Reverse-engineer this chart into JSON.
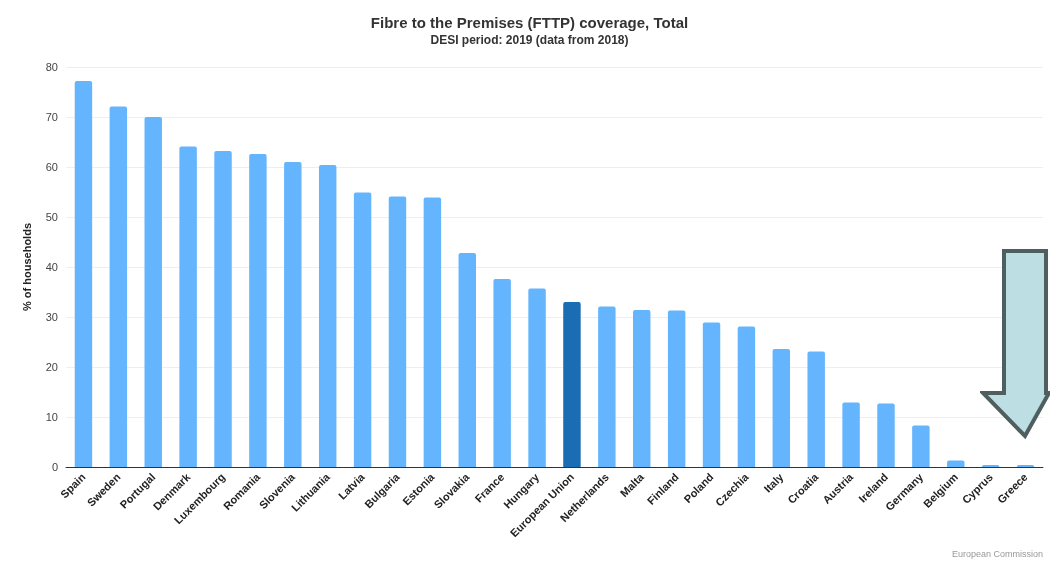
{
  "chart_data": {
    "type": "bar",
    "title": "Fibre to the Premises (FTTP) coverage, Total",
    "subtitle": "DESI period: 2019 (data from 2018)",
    "ylabel": "% of households",
    "categories": [
      "Spain",
      "Sweden",
      "Portugal",
      "Denmark",
      "Luxembourg",
      "Romania",
      "Slovenia",
      "Lithuania",
      "Latvia",
      "Bulgaria",
      "Estonia",
      "Slovakia",
      "France",
      "Hungary",
      "European Union",
      "Netherlands",
      "Malta",
      "Finland",
      "Poland",
      "Czechia",
      "Italy",
      "Croatia",
      "Austria",
      "Ireland",
      "Germany",
      "Belgium",
      "Cyprus",
      "Greece"
    ],
    "values": [
      77.2,
      72.1,
      70.0,
      64.1,
      63.2,
      62.6,
      61.0,
      60.4,
      54.9,
      54.1,
      53.9,
      42.8,
      37.6,
      35.7,
      33.0,
      32.1,
      31.4,
      31.3,
      28.9,
      28.1,
      23.6,
      23.1,
      12.9,
      12.7,
      8.3,
      1.3,
      0.4,
      0.4
    ],
    "colors": [
      "#64b5fd",
      "#64b5fd",
      "#64b5fd",
      "#64b5fd",
      "#64b5fd",
      "#64b5fd",
      "#64b5fd",
      "#64b5fd",
      "#64b5fd",
      "#64b5fd",
      "#64b5fd",
      "#64b5fd",
      "#64b5fd",
      "#64b5fd",
      "#1a6db3",
      "#64b5fd",
      "#64b5fd",
      "#64b5fd",
      "#64b5fd",
      "#64b5fd",
      "#64b5fd",
      "#64b5fd",
      "#64b5fd",
      "#64b5fd",
      "#64b5fd",
      "#64b5fd",
      "#64b5fd",
      "#64b5fd"
    ],
    "ylim": [
      0,
      80
    ],
    "yticks": [
      0,
      10,
      20,
      30,
      40,
      50,
      60,
      70,
      80
    ],
    "grid": "y",
    "annotations": [
      "European Commission"
    ]
  }
}
